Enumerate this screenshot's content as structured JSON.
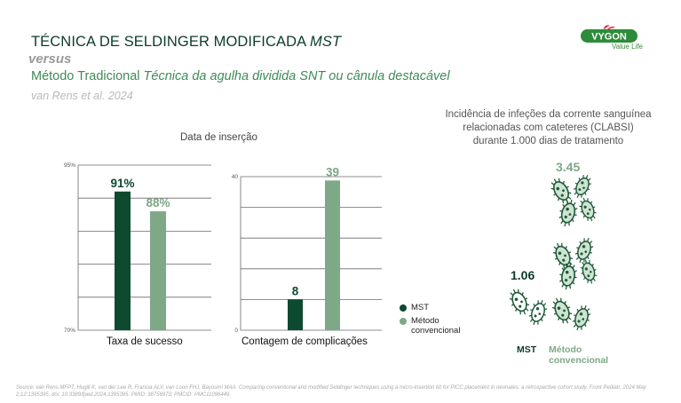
{
  "header": {
    "title_main": "TÉCNICA DE SELDINGER MODIFICADA",
    "title_mst": "MST",
    "versus": "versus",
    "subtitle_main": "Método Tradicional",
    "subtitle_italic": "Técnica da agulha dividida SNT ou cânula destacável",
    "citation": "van Rens et al. 2024"
  },
  "logo": {
    "brand": "VYGON",
    "tagline": "Value Life"
  },
  "section_title": "Data de inserção",
  "colors": {
    "mst": "#0d4a30",
    "conv": "#7ea886",
    "title": "#0d3b2a",
    "accent": "#3f8a57"
  },
  "chart_data": [
    {
      "type": "bar",
      "xlabel": "Taxa de sucesso",
      "y_tick_labels": [
        "95%",
        "70%"
      ],
      "ylim": [
        70,
        95
      ],
      "grid": true,
      "series": [
        {
          "name": "MST",
          "values": [
            91
          ],
          "label": "91%"
        },
        {
          "name": "Método convencional",
          "values": [
            88
          ],
          "label": "88%"
        }
      ]
    },
    {
      "type": "bar",
      "xlabel": "Contagem de complicações",
      "y_tick_labels": [
        "40",
        "0"
      ],
      "ylim": [
        0,
        40
      ],
      "grid": true,
      "series": [
        {
          "name": "MST",
          "values": [
            8
          ],
          "label": "8"
        },
        {
          "name": "Método convencional",
          "values": [
            39
          ],
          "label": "39"
        }
      ]
    },
    {
      "type": "bar",
      "title": "Incidência de infeções da corrente sanguínea relacionadas com cateteres (CLABSI) durante 1.000 dias de tratamento",
      "categories": [
        "MST",
        "Método convencional"
      ],
      "values": [
        1.06,
        3.45
      ],
      "value_labels": [
        "1.06",
        "3.45"
      ]
    }
  ],
  "legend": {
    "mst": "MST",
    "conv_line1": "Método",
    "conv_line2": "convencional"
  },
  "clabsi": {
    "title_l1": "Incidência de infeções da corrente sanguínea",
    "title_l2": "relacionadas com cateteres (CLABSI)",
    "title_l3": "durante 1.000 dias de tratamento",
    "mst_label": "MST",
    "conv_label_l1": "Método",
    "conv_label_l2": "convencional"
  },
  "source": "Source: van Rens MFPT, Hugill K, van der Lee R, Francia ALV, van Loon FHJ, Bayoumi MAA. Comparing conventional and modified Seldinger techniques using a micro-insertion kit for PICC placement in neonates: a retrospective cohort study. Front Pediatr. 2024 May 2;12:1395395. doi: 10.3389/fped.2024.1395395. PMID: 38756973; PMCID: PMC11096449."
}
